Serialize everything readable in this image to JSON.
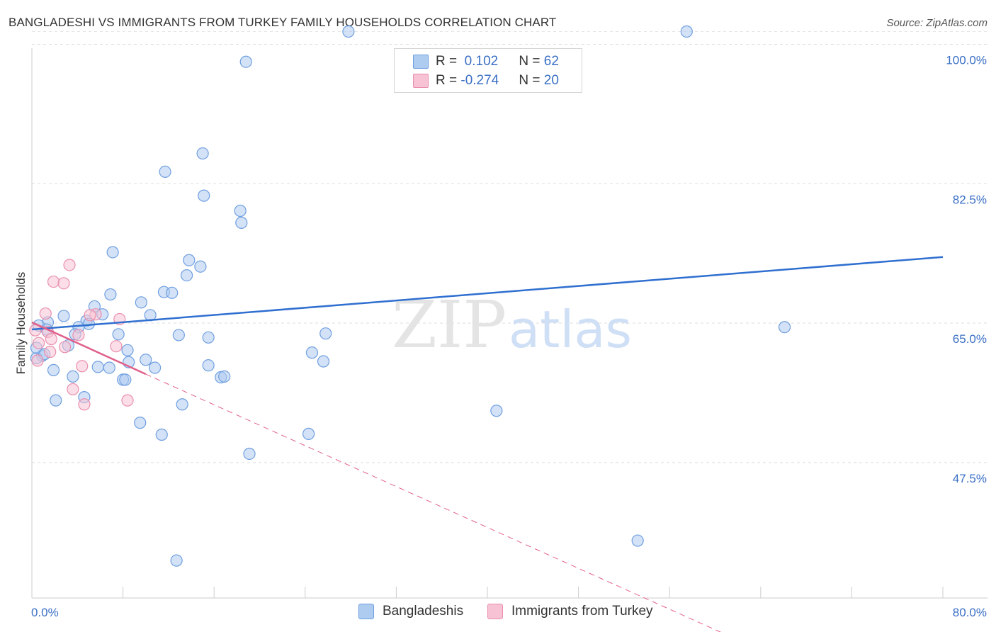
{
  "header": {
    "title": "BANGLADESHI VS IMMIGRANTS FROM TURKEY FAMILY HOUSEHOLDS CORRELATION CHART",
    "source": "Source: ZipAtlas.com"
  },
  "watermark": {
    "part1": "ZIP",
    "part2": "atlas"
  },
  "legend": {
    "series": [
      {
        "r_label": "R = ",
        "r_value": " 0.102",
        "n_label": "N = ",
        "n_value": "62"
      },
      {
        "r_label": "R = ",
        "r_value": "-0.274",
        "n_label": "N = ",
        "n_value": "20"
      }
    ]
  },
  "colors": {
    "blue_fill": "#aecbf0",
    "blue_stroke": "#6f9fe0",
    "blue_line": "#2f6fd0",
    "pink_fill": "#f7c2d3",
    "pink_stroke": "#ea8fae",
    "pink_line": "#e0608a"
  },
  "chart_data": {
    "type": "scatter",
    "title": "BANGLADESHI VS IMMIGRANTS FROM TURKEY FAMILY HOUSEHOLDS CORRELATION CHART",
    "xlabel": "",
    "ylabel": "Family Households",
    "xlim": [
      0,
      80
    ],
    "ylim": [
      30.5,
      102
    ],
    "x_tick_labels": [
      "0.0%",
      "80.0%"
    ],
    "y_ticks": [
      47.5,
      65.0,
      82.5,
      100.0
    ],
    "y_tick_labels": [
      "47.5%",
      "65.0%",
      "82.5%",
      "100.0%"
    ],
    "legend_position": "top-center",
    "series": [
      {
        "name": "Bangladeshis",
        "points": [
          [
            27.8,
            101.6
          ],
          [
            57.5,
            101.6
          ],
          [
            18.8,
            97.8
          ],
          [
            15.0,
            86.3
          ],
          [
            11.7,
            84.0
          ],
          [
            15.1,
            81.0
          ],
          [
            18.3,
            79.1
          ],
          [
            18.4,
            77.6
          ],
          [
            7.1,
            73.9
          ],
          [
            13.8,
            72.9
          ],
          [
            14.8,
            72.1
          ],
          [
            13.6,
            71.0
          ],
          [
            11.6,
            68.9
          ],
          [
            12.3,
            68.8
          ],
          [
            6.9,
            68.6
          ],
          [
            9.6,
            67.6
          ],
          [
            5.5,
            67.1
          ],
          [
            6.2,
            66.1
          ],
          [
            10.4,
            66.0
          ],
          [
            2.8,
            65.9
          ],
          [
            4.8,
            65.3
          ],
          [
            1.4,
            65.1
          ],
          [
            5.0,
            64.9
          ],
          [
            0.6,
            64.7
          ],
          [
            4.1,
            64.5
          ],
          [
            1.3,
            64.2
          ],
          [
            7.6,
            63.6
          ],
          [
            3.8,
            63.6
          ],
          [
            12.9,
            63.5
          ],
          [
            15.5,
            63.2
          ],
          [
            66.1,
            64.5
          ],
          [
            25.8,
            63.7
          ],
          [
            3.2,
            62.2
          ],
          [
            8.4,
            61.6
          ],
          [
            24.6,
            61.3
          ],
          [
            0.9,
            60.9
          ],
          [
            0.4,
            60.6
          ],
          [
            10.0,
            60.4
          ],
          [
            8.5,
            60.1
          ],
          [
            25.6,
            60.2
          ],
          [
            15.5,
            59.7
          ],
          [
            6.8,
            59.4
          ],
          [
            5.8,
            59.5
          ],
          [
            10.8,
            59.4
          ],
          [
            1.9,
            59.1
          ],
          [
            3.6,
            58.3
          ],
          [
            16.6,
            58.2
          ],
          [
            16.9,
            58.3
          ],
          [
            8.0,
            57.9
          ],
          [
            8.2,
            57.9
          ],
          [
            4.6,
            55.7
          ],
          [
            2.1,
            55.3
          ],
          [
            13.2,
            54.8
          ],
          [
            40.8,
            54.0
          ],
          [
            9.5,
            52.5
          ],
          [
            11.4,
            51.0
          ],
          [
            24.3,
            51.1
          ],
          [
            19.1,
            48.6
          ],
          [
            53.2,
            37.7
          ],
          [
            12.7,
            35.2
          ],
          [
            0.4,
            61.9
          ],
          [
            1.1,
            61.1
          ]
        ]
      },
      {
        "name": "Immigrants from Turkey",
        "points": [
          [
            3.3,
            72.3
          ],
          [
            1.9,
            70.2
          ],
          [
            2.8,
            70.0
          ],
          [
            1.2,
            66.2
          ],
          [
            5.6,
            66.1
          ],
          [
            7.7,
            65.5
          ],
          [
            5.1,
            66.0
          ],
          [
            0.3,
            64.1
          ],
          [
            1.4,
            63.9
          ],
          [
            1.7,
            63.0
          ],
          [
            4.1,
            63.5
          ],
          [
            7.4,
            62.1
          ],
          [
            0.6,
            62.5
          ],
          [
            2.9,
            62.0
          ],
          [
            1.6,
            61.4
          ],
          [
            0.5,
            60.3
          ],
          [
            4.4,
            59.6
          ],
          [
            3.6,
            56.7
          ],
          [
            8.4,
            55.3
          ],
          [
            4.6,
            54.8
          ]
        ]
      }
    ],
    "trendlines": [
      {
        "series": "Bangladeshis",
        "x": [
          0,
          80
        ],
        "y": [
          64.2,
          73.3
        ],
        "style": "solid"
      },
      {
        "series": "Immigrants from Turkey",
        "x": [
          0,
          10
        ],
        "y": [
          65.1,
          58.6
        ],
        "style": "solid"
      },
      {
        "series": "Immigrants from Turkey",
        "x": [
          10,
          63
        ],
        "y": [
          58.6,
          24.6
        ],
        "style": "dashed"
      }
    ]
  },
  "bottom_legend": {
    "items": [
      "Bangladeshis",
      "Immigrants from Turkey"
    ]
  }
}
